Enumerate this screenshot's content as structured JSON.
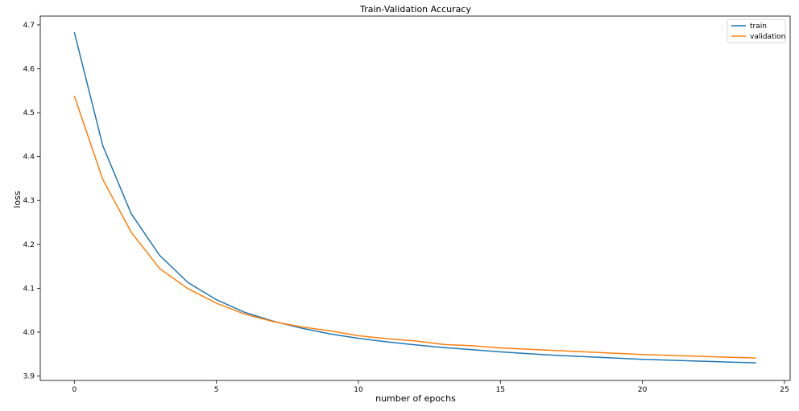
{
  "chart_data": {
    "type": "line",
    "title": "Train-Validation Accuracy",
    "xlabel": "number of epochs",
    "ylabel": "loss",
    "xlim": [
      -1.2,
      25.2
    ],
    "ylim": [
      3.89,
      4.72
    ],
    "xticks": [
      0,
      5,
      10,
      15,
      20,
      25
    ],
    "yticks": [
      3.9,
      4.0,
      4.1,
      4.2,
      4.3,
      4.4,
      4.5,
      4.6,
      4.7
    ],
    "grid": false,
    "legend_position": "top-right",
    "x": [
      0,
      1,
      2,
      3,
      4,
      5,
      6,
      7,
      8,
      9,
      10,
      11,
      12,
      13,
      14,
      15,
      16,
      17,
      18,
      19,
      20,
      21,
      22,
      23,
      24
    ],
    "series": [
      {
        "name": "train",
        "color": "#1f77b4",
        "values": [
          4.683,
          4.425,
          4.27,
          4.175,
          4.113,
          4.074,
          4.045,
          4.025,
          4.009,
          3.996,
          3.986,
          3.978,
          3.971,
          3.965,
          3.96,
          3.955,
          3.951,
          3.947,
          3.944,
          3.941,
          3.938,
          3.936,
          3.934,
          3.932,
          3.93
        ]
      },
      {
        "name": "validation",
        "color": "#ff7f0e",
        "values": [
          4.538,
          4.348,
          4.228,
          4.145,
          4.099,
          4.066,
          4.041,
          4.024,
          4.012,
          4.003,
          3.992,
          3.985,
          3.98,
          3.972,
          3.969,
          3.964,
          3.961,
          3.958,
          3.955,
          3.952,
          3.949,
          3.947,
          3.945,
          3.943,
          3.941
        ]
      }
    ]
  }
}
